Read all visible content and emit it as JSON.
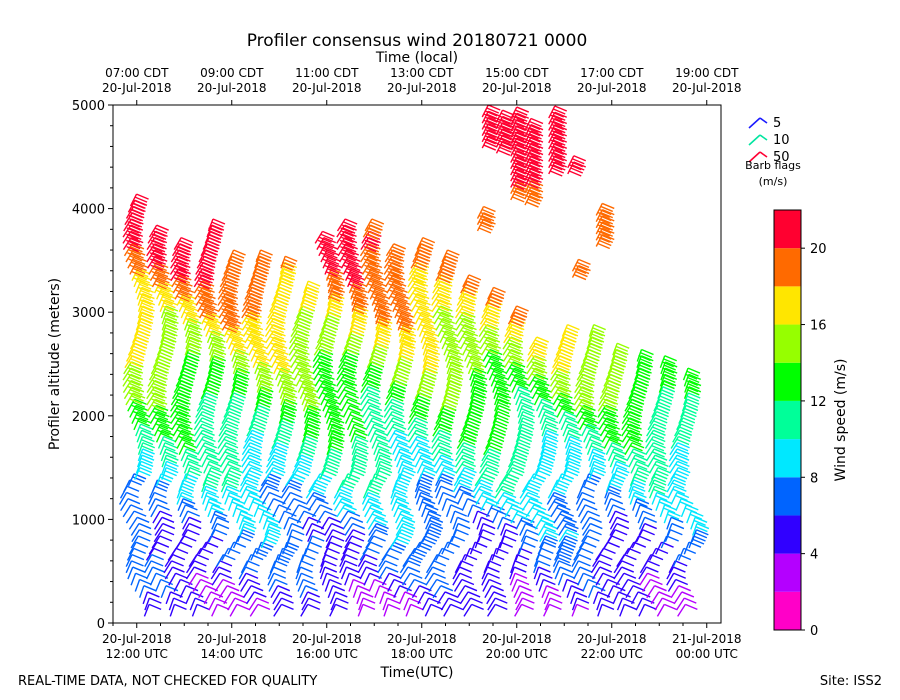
{
  "chart_data": {
    "type": "wind_barb_profile",
    "title": "Profiler consensus wind 20180721 0000",
    "xlabel": "Time(UTC)",
    "x2label": "Time (local)",
    "ylabel": "Profiler altitude (meters)",
    "ylim": [
      0,
      5000
    ],
    "xlim_hours_utc": [
      11.5,
      24.3
    ],
    "yticks": [
      0,
      1000,
      2000,
      3000,
      4000,
      5000
    ],
    "bottom_ticks": [
      {
        "hour": 12,
        "date": "20-Jul-2018",
        "time": "12:00 UTC"
      },
      {
        "hour": 14,
        "date": "20-Jul-2018",
        "time": "14:00 UTC"
      },
      {
        "hour": 16,
        "date": "20-Jul-2018",
        "time": "16:00 UTC"
      },
      {
        "hour": 18,
        "date": "20-Jul-2018",
        "time": "18:00 UTC"
      },
      {
        "hour": 20,
        "date": "20-Jul-2018",
        "time": "20:00 UTC"
      },
      {
        "hour": 22,
        "date": "20-Jul-2018",
        "time": "22:00 UTC"
      },
      {
        "hour": 24,
        "date": "21-Jul-2018",
        "time": "00:00 UTC"
      }
    ],
    "top_ticks": [
      {
        "hour": 12,
        "time": "07:00 CDT",
        "date": "20-Jul-2018"
      },
      {
        "hour": 14,
        "time": "09:00 CDT",
        "date": "20-Jul-2018"
      },
      {
        "hour": 16,
        "time": "11:00 CDT",
        "date": "20-Jul-2018"
      },
      {
        "hour": 18,
        "time": "13:00 CDT",
        "date": "20-Jul-2018"
      },
      {
        "hour": 20,
        "time": "15:00 CDT",
        "date": "20-Jul-2018"
      },
      {
        "hour": 22,
        "time": "17:00 CDT",
        "date": "20-Jul-2018"
      },
      {
        "hour": 24,
        "time": "19:00 CDT",
        "date": "20-Jul-2018"
      }
    ],
    "barb_legend": {
      "title": "Barb flags",
      "units": "(m/s)",
      "entries": [
        {
          "value": "5",
          "color": "#1a1aff"
        },
        {
          "value": "10",
          "color": "#00e5a0"
        },
        {
          "value": "50",
          "color": "#ff0033"
        }
      ]
    },
    "colorbar": {
      "label": "Wind speed (m/s)",
      "min": 0,
      "max": 22,
      "ticks": [
        0,
        4,
        8,
        12,
        16,
        20
      ],
      "colors": [
        "#ff00c8",
        "#b400ff",
        "#3000ff",
        "#0064ff",
        "#00e8ff",
        "#00ff99",
        "#00ff00",
        "#96ff00",
        "#ffe600",
        "#ff6a00",
        "#ff0030"
      ]
    },
    "profile_times_utc": [
      12.0,
      12.5,
      13.0,
      13.5,
      14.0,
      14.5,
      15.0,
      15.5,
      16.0,
      16.5,
      17.0,
      17.5,
      18.0,
      18.5,
      19.0,
      19.5,
      20.0,
      20.5,
      21.0,
      21.5,
      22.0,
      22.5,
      23.0,
      23.5
    ],
    "profile_top_altitude_m": [
      4150,
      3850,
      3750,
      3900,
      3650,
      3600,
      3550,
      3300,
      3800,
      3900,
      3950,
      3700,
      3750,
      3650,
      3400,
      3250,
      3100,
      2800,
      2900,
      2900,
      2700,
      2650,
      2600,
      2500
    ],
    "speed_profile": [
      {
        "altitude_m": 200,
        "speed_ms": 4
      },
      {
        "altitude_m": 600,
        "speed_ms": 6
      },
      {
        "altitude_m": 1000,
        "speed_ms": 7
      },
      {
        "altitude_m": 1400,
        "speed_ms": 9
      },
      {
        "altitude_m": 1800,
        "speed_ms": 11
      },
      {
        "altitude_m": 2200,
        "speed_ms": 13
      },
      {
        "altitude_m": 2600,
        "speed_ms": 15
      },
      {
        "altitude_m": 3000,
        "speed_ms": 17
      },
      {
        "altitude_m": 3400,
        "speed_ms": 19
      },
      {
        "altitude_m": 3800,
        "speed_ms": 21
      }
    ],
    "upper_segments": [
      {
        "time_utc": 19.4,
        "from_m": 4700,
        "to_m": 5000
      },
      {
        "time_utc": 19.7,
        "from_m": 4650,
        "to_m": 5000
      },
      {
        "time_utc": 20.0,
        "from_m": 4200,
        "to_m": 5000
      },
      {
        "time_utc": 20.3,
        "from_m": 4150,
        "to_m": 4900
      },
      {
        "time_utc": 20.8,
        "from_m": 4450,
        "to_m": 5000
      },
      {
        "time_utc": 21.2,
        "from_m": 4450,
        "to_m": 4550
      },
      {
        "time_utc": 21.8,
        "from_m": 3750,
        "to_m": 4100
      },
      {
        "time_utc": 19.3,
        "from_m": 3900,
        "to_m": 4050
      },
      {
        "time_utc": 21.3,
        "from_m": 3450,
        "to_m": 3550
      }
    ]
  },
  "footer": {
    "left": "REAL-TIME DATA, NOT CHECKED FOR QUALITY",
    "right": "Site: ISS2"
  }
}
